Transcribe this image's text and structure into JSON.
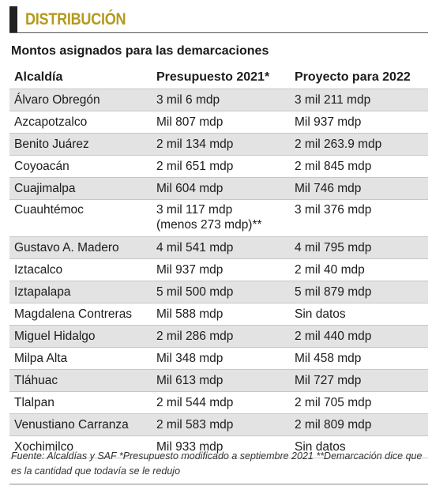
{
  "header": {
    "title": "DISTRIBUCIÓN"
  },
  "subtitle": "Montos asignados para las demarcaciones",
  "table": {
    "columns": [
      "Alcaldía",
      "Presupuesto 2021*",
      "Proyecto para 2022"
    ],
    "rows": [
      {
        "alcaldia": "Álvaro Obregón",
        "presupuesto_2021": "3 mil 6 mdp",
        "proyecto_2022": "3 mil 211 mdp"
      },
      {
        "alcaldia": "Azcapotzalco",
        "presupuesto_2021": "Mil 807 mdp",
        "proyecto_2022": "Mil 937 mdp"
      },
      {
        "alcaldia": "Benito Juárez",
        "presupuesto_2021": "2 mil 134 mdp",
        "proyecto_2022": "2 mil 263.9 mdp"
      },
      {
        "alcaldia": "Coyoacán",
        "presupuesto_2021": "2 mil 651 mdp",
        "proyecto_2022": "2 mil 845 mdp"
      },
      {
        "alcaldia": "Cuajimalpa",
        "presupuesto_2021": "Mil 604 mdp",
        "proyecto_2022": "Mil 746 mdp"
      },
      {
        "alcaldia": "Cuauhtémoc",
        "presupuesto_2021": "3 mil 117 mdp",
        "presupuesto_2021_note": "(menos 273 mdp)**",
        "proyecto_2022": "3 mil 376 mdp"
      },
      {
        "alcaldia": "Gustavo A. Madero",
        "presupuesto_2021": "4 mil 541 mdp",
        "proyecto_2022": "4 mil 795 mdp"
      },
      {
        "alcaldia": "Iztacalco",
        "presupuesto_2021": "Mil 937 mdp",
        "proyecto_2022": "2 mil 40 mdp"
      },
      {
        "alcaldia": "Iztapalapa",
        "presupuesto_2021": "5 mil 500 mdp",
        "proyecto_2022": "5 mil 879 mdp"
      },
      {
        "alcaldia": "Magdalena Contreras",
        "presupuesto_2021": "Mil 588 mdp",
        "proyecto_2022": "Sin datos"
      },
      {
        "alcaldia": "Miguel Hidalgo",
        "presupuesto_2021": "2 mil 286 mdp",
        "proyecto_2022": "2 mil 440 mdp"
      },
      {
        "alcaldia": "Milpa Alta",
        "presupuesto_2021": "Mil 348 mdp",
        "proyecto_2022": "Mil 458 mdp"
      },
      {
        "alcaldia": "Tláhuac",
        "presupuesto_2021": "Mil 613 mdp",
        "proyecto_2022": "Mil 727 mdp"
      },
      {
        "alcaldia": "Tlalpan",
        "presupuesto_2021": "2 mil 544 mdp",
        "proyecto_2022": "2 mil 705 mdp"
      },
      {
        "alcaldia": "Venustiano Carranza",
        "presupuesto_2021": "2 mil 583 mdp",
        "proyecto_2022": "2 mil 809 mdp"
      },
      {
        "alcaldia": "Xochimilco",
        "presupuesto_2021": "Mil 933 mdp",
        "proyecto_2022": "Sin datos"
      }
    ]
  },
  "footnote": "Fuente: Alcaldías y SAF *Presupuesto modificado a septiembre 2021 **Demarcación dice que es la cantidad que todavía se le redujo",
  "colors": {
    "title": "#b39a1e",
    "bar": "#222222",
    "row_shade": "#e3e3e3"
  }
}
